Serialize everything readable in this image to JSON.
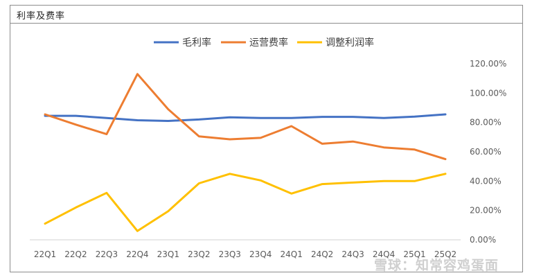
{
  "title": "利率及费率",
  "watermark": "雪球：知常容鸡蛋面",
  "chart_data": {
    "type": "line",
    "title": "利率及费率",
    "categories": [
      "22Q1",
      "22Q2",
      "22Q3",
      "22Q4",
      "23Q1",
      "23Q2",
      "23Q3",
      "23Q4",
      "24Q1",
      "24Q2",
      "24Q3",
      "24Q4",
      "25Q1",
      "25Q2"
    ],
    "y_ticks": [
      "0.00%",
      "20.00%",
      "40.00%",
      "60.00%",
      "80.00%",
      "100.00%",
      "120.00%"
    ],
    "ylim": [
      0,
      120
    ],
    "grid": false,
    "legend_position": "top",
    "series": [
      {
        "name": "毛利率",
        "color": "#4472c4",
        "values": [
          84.5,
          84.5,
          83.0,
          81.5,
          81.0,
          82.0,
          83.5,
          83.0,
          83.0,
          83.8,
          83.8,
          83.0,
          84.0,
          85.5
        ]
      },
      {
        "name": "运营费率",
        "color": "#ed7d31",
        "values": [
          85.5,
          78.5,
          72.0,
          113.0,
          89.0,
          70.5,
          68.5,
          69.5,
          77.5,
          65.5,
          67.0,
          63.0,
          61.5,
          55.0
        ]
      },
      {
        "name": "调整利润率",
        "color": "#ffc000",
        "values": [
          11.0,
          22.0,
          32.0,
          6.0,
          19.5,
          38.5,
          45.0,
          40.5,
          31.5,
          38.0,
          39.0,
          40.0,
          40.0,
          45.0
        ]
      }
    ]
  }
}
